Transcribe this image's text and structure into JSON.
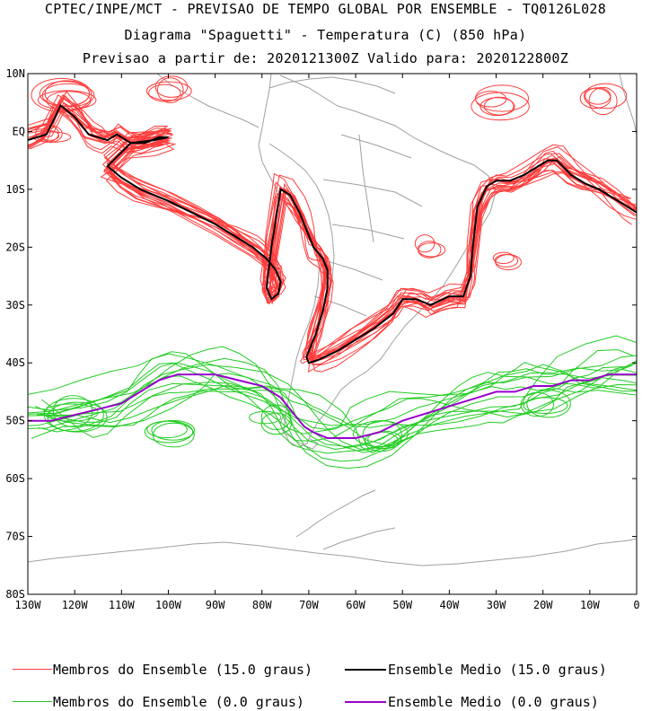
{
  "header": {
    "line1": "CPTEC/INPE/MCT - PREVISAO DE TEMPO GLOBAL POR ENSEMBLE - TQ0126L028",
    "line2": "Diagrama \"Spaguetti\" - Temperatura (C) (850 hPa)",
    "line3": "Previsao a partir de: 2020121300Z  Valido para: 2020122800Z"
  },
  "axes": {
    "lat_labels": [
      "10N",
      "EQ",
      "10S",
      "20S",
      "30S",
      "40S",
      "50S",
      "60S",
      "70S",
      "80S"
    ],
    "lon_labels": [
      "130W",
      "120W",
      "110W",
      "100W",
      "90W",
      "80W",
      "70W",
      "60W",
      "50W",
      "40W",
      "30W",
      "20W",
      "10W",
      "0"
    ],
    "lat_range": [
      -80,
      10
    ],
    "lon_range": [
      -130,
      0
    ]
  },
  "colors": {
    "member_15": "#ff3c3c",
    "mean_15": "#000000",
    "member_0": "#22cc22",
    "mean_0": "#9900cc",
    "coast": "#a0a0a0"
  },
  "legend": {
    "item1": "Membros do Ensemble (15.0 graus)",
    "item2": "Ensemble Medio (15.0 graus)",
    "item3": "Membros do Ensemble (0.0 graus)",
    "item4": "Ensemble Medio (0.0 graus)"
  },
  "chart_data": {
    "type": "line",
    "x_unit": "longitude (deg)",
    "y_unit": "latitude (deg)",
    "series": [
      {
        "name": "Ensemble Medio (15.0 graus)",
        "x": [
          -130,
          -126,
          -123,
          -120,
          -117,
          -115,
          -113,
          -111,
          -108,
          -105,
          -102,
          -100,
          -103,
          -108,
          -113,
          -110,
          -106,
          -100,
          -95,
          -90,
          -86,
          -82,
          -79,
          -77,
          -76,
          -76.5,
          -78,
          -79,
          -78,
          -76,
          -74,
          -72,
          -71,
          -70,
          -69,
          -68,
          -67,
          -66,
          -66,
          -67,
          -68.5,
          -69.5,
          -70.5,
          -70,
          -68,
          -64,
          -60,
          -56,
          -52,
          -50,
          -47,
          -44,
          -40,
          -37,
          -35.5,
          -35,
          -34,
          -32,
          -30,
          -27,
          -24,
          -21,
          -19,
          -17,
          -14,
          -11,
          -8,
          -5,
          -2,
          0
        ],
        "y": [
          -1.5,
          -0.5,
          4.5,
          2.5,
          -0.5,
          -1,
          -1.5,
          -0.5,
          -2,
          -2,
          -1,
          -1,
          -1.5,
          -2,
          -6,
          -8,
          -10,
          -12,
          -14,
          -16,
          -18,
          -20,
          -22,
          -24,
          -26,
          -28,
          -29,
          -27,
          -20,
          -10,
          -11,
          -14,
          -16,
          -18,
          -20,
          -21,
          -22,
          -24,
          -27,
          -31,
          -35,
          -37,
          -39,
          -40,
          -39.5,
          -38,
          -36,
          -34,
          -31.5,
          -29,
          -29,
          -30,
          -28.5,
          -28.5,
          -25,
          -20,
          -13,
          -9.5,
          -8.5,
          -8.5,
          -7.5,
          -6,
          -5,
          -5,
          -7.5,
          -9,
          -10,
          -11.5,
          -13,
          -14
        ]
      },
      {
        "name": "Ensemble Medio (0.0 graus)",
        "x": [
          -130,
          -125,
          -120,
          -115,
          -110,
          -106,
          -102,
          -98,
          -94,
          -90,
          -85,
          -80,
          -76,
          -73,
          -71,
          -69,
          -66,
          -63,
          -60,
          -55,
          -50,
          -46,
          -42,
          -38,
          -34,
          -30,
          -26,
          -22,
          -18,
          -14,
          -10,
          -6,
          -2,
          0
        ],
        "y": [
          -50,
          -50,
          -49,
          -48,
          -47,
          -45,
          -43,
          -42,
          -42,
          -42,
          -43,
          -44,
          -46,
          -49,
          -51,
          -52,
          -53,
          -53,
          -53,
          -52,
          -50,
          -49,
          -48,
          -47,
          -46,
          -45,
          -45,
          -44,
          -44,
          -43,
          -43,
          -42,
          -42,
          -42
        ]
      },
      {
        "name": "Membros do Ensemble (15.0 graus)",
        "x": [],
        "y": []
      },
      {
        "name": "Membros do Ensemble (0.0 graus)",
        "x": [],
        "y": []
      }
    ],
    "xlabel": "",
    "ylabel": ""
  }
}
